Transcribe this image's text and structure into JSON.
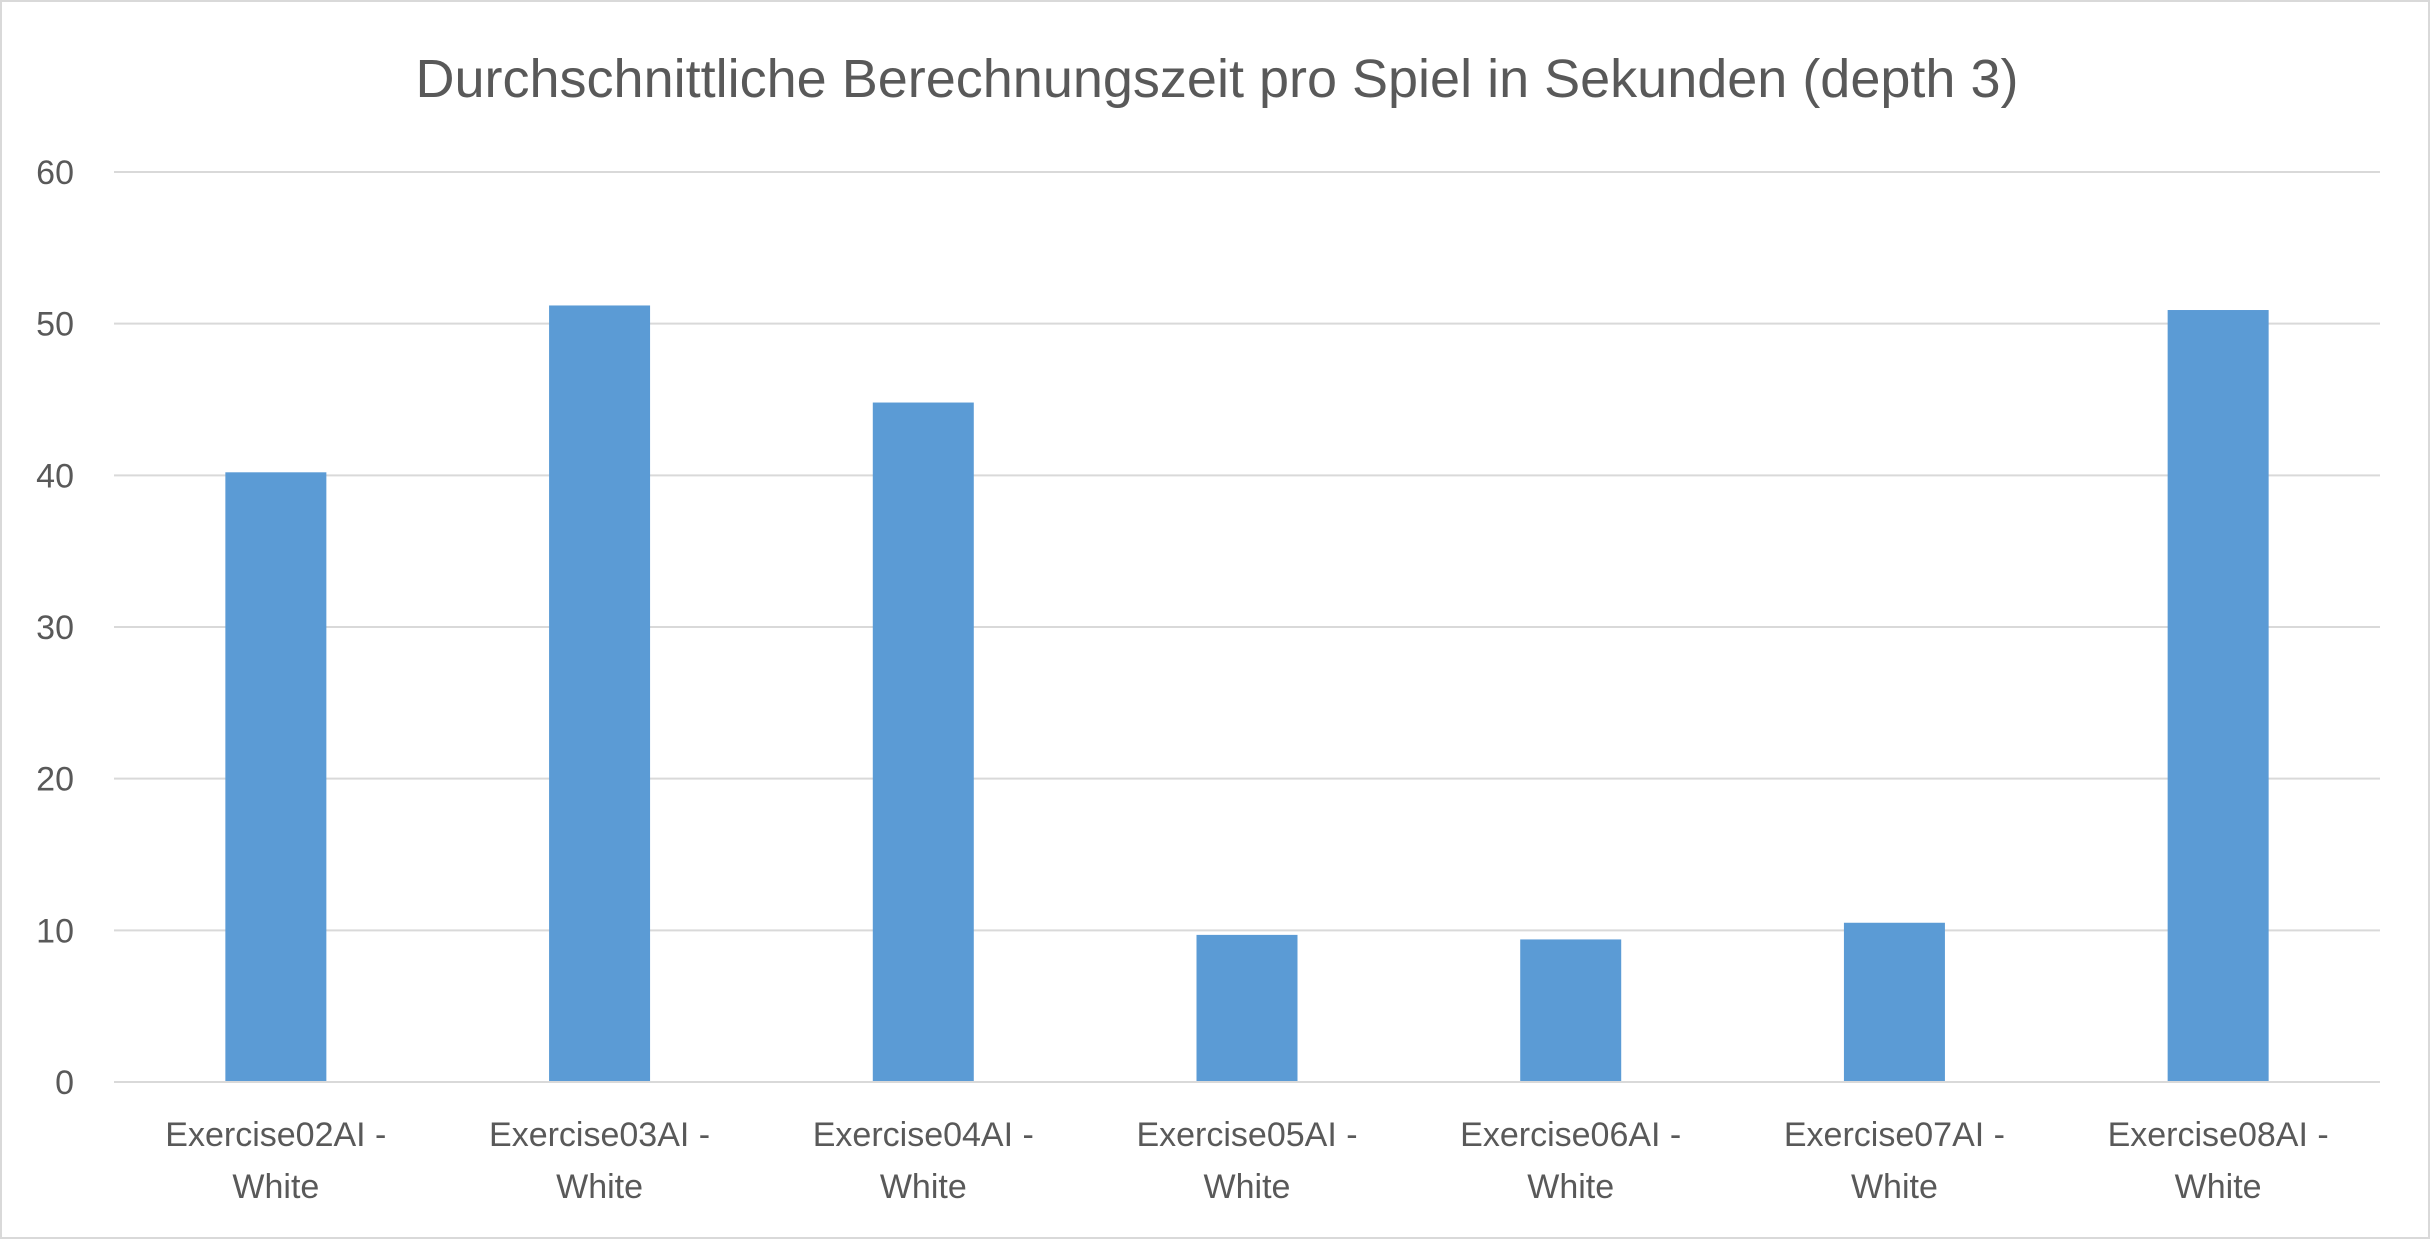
{
  "chart_data": {
    "type": "bar",
    "title": "Durchschnittliche Berechnungszeit pro Spiel in Sekunden (depth 3)",
    "xlabel": "",
    "ylabel": "",
    "categories": [
      [
        "Exercise02AI -",
        "White"
      ],
      [
        "Exercise03AI -",
        "White"
      ],
      [
        "Exercise04AI -",
        "White"
      ],
      [
        "Exercise05AI -",
        "White"
      ],
      [
        "Exercise06AI -",
        "White"
      ],
      [
        "Exercise07AI -",
        "White"
      ],
      [
        "Exercise08AI -",
        "White"
      ]
    ],
    "values": [
      40.2,
      51.2,
      44.8,
      9.7,
      9.4,
      10.5,
      50.9
    ],
    "ylim": [
      0,
      60
    ],
    "yticks": [
      "0",
      "10",
      "20",
      "30",
      "40",
      "50",
      "60"
    ],
    "grid": true,
    "legend": "none",
    "bar_color": "#5b9bd5"
  }
}
